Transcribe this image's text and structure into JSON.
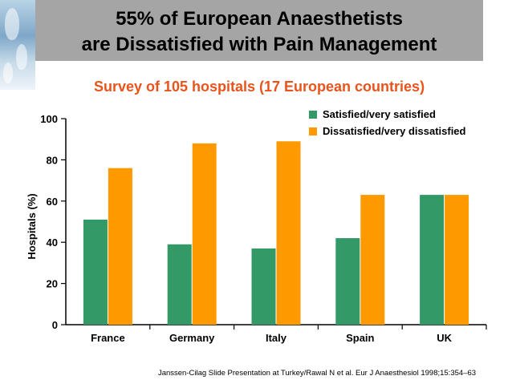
{
  "slide": {
    "title_line1": "55% of European Anaesthetists",
    "title_line2": "are Dissatisfied with Pain Management",
    "footnote": "Janssen-Cilag Slide Presentation at Turkey/Rawal N et al. Eur J Anaesthesiol 1998;15:354–63"
  },
  "chart_data": {
    "type": "bar",
    "title": "Survey of 105 hospitals (17 European countries)",
    "xlabel": "",
    "ylabel": "Hospitals (%)",
    "ylim": [
      0,
      100
    ],
    "yticks": [
      0,
      20,
      40,
      60,
      80,
      100
    ],
    "categories": [
      "France",
      "Germany",
      "Italy",
      "Spain",
      "UK"
    ],
    "series": [
      {
        "name": "Satisfied/very satisfied",
        "color": "#339966",
        "values": [
          51,
          39,
          37,
          42,
          63
        ]
      },
      {
        "name": "Dissatisfied/very dissatisfied",
        "color": "#ff9900",
        "values": [
          76,
          88,
          89,
          63,
          63
        ]
      }
    ],
    "grid": false,
    "legend": "top-right"
  }
}
